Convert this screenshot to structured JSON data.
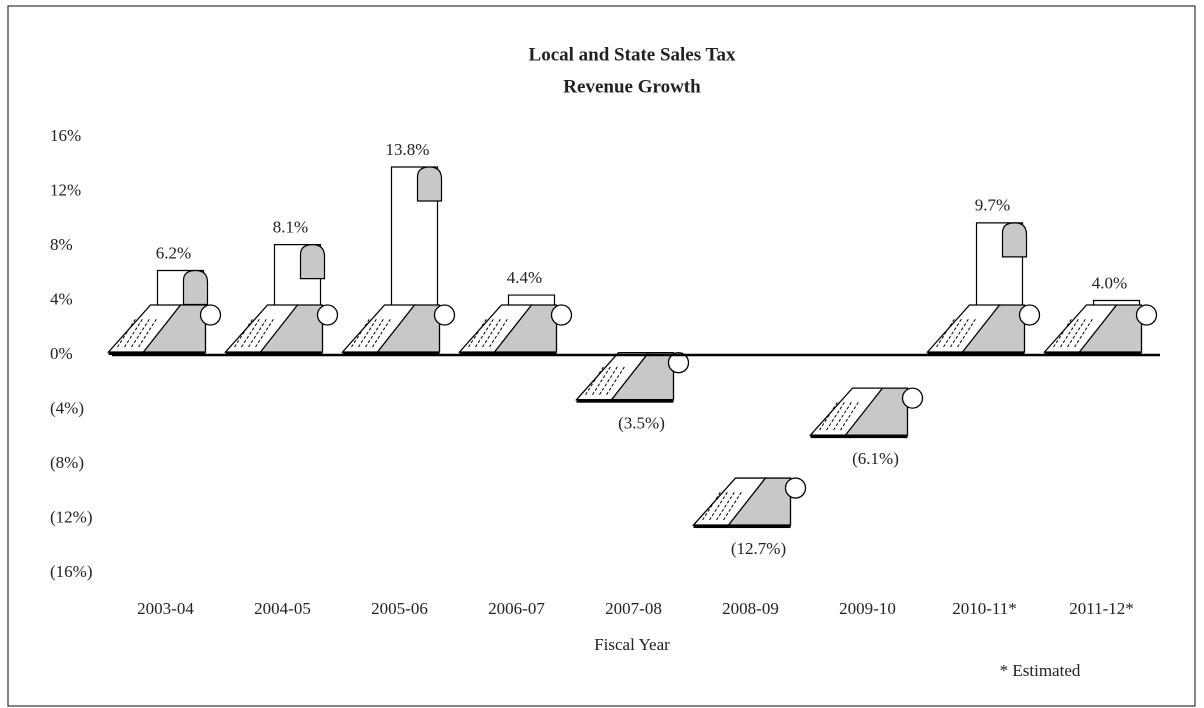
{
  "chart_data": {
    "type": "pictograph-bar",
    "title": [
      "Local and State Sales Tax",
      "Revenue Growth"
    ],
    "x_label": "Fiscal Year",
    "annotation": "* Estimated",
    "categories": [
      "2003-04",
      "2004-05",
      "2005-06",
      "2006-07",
      "2007-08",
      "2008-09",
      "2009-10",
      "2010-11*",
      "2011-12*"
    ],
    "values": [
      6.2,
      8.1,
      13.8,
      4.4,
      -3.5,
      -12.7,
      -6.1,
      9.7,
      4.0
    ],
    "value_labels": [
      "6.2%",
      "8.1%",
      "13.8%",
      "4.4%",
      "(3.5%)",
      "(12.7%)",
      "(6.1%)",
      "9.7%",
      "4.0%"
    ],
    "color": "#c8c8c8",
    "ylim": [
      -16,
      16
    ],
    "yticks": [
      {
        "value": 16,
        "label": "16%"
      },
      {
        "value": 12,
        "label": "12%"
      },
      {
        "value": 8,
        "label": "8%"
      },
      {
        "value": 4,
        "label": "4%"
      },
      {
        "value": 0,
        "label": "0%"
      },
      {
        "value": -4,
        "label": "(4%)"
      },
      {
        "value": -8,
        "label": "(8%)"
      },
      {
        "value": -12,
        "label": "(12%)"
      },
      {
        "value": -16,
        "label": "(16%)"
      }
    ],
    "grid": false
  }
}
